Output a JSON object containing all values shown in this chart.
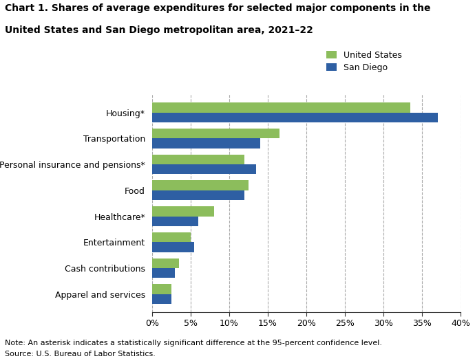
{
  "title_line1": "Chart 1. Shares of average expenditures for selected major components in the",
  "title_line2": "United States and San Diego metropolitan area, 2021–22",
  "categories": [
    "Apparel and services",
    "Cash contributions",
    "Entertainment",
    "Healthcare*",
    "Food",
    "Personal insurance and pensions*",
    "Transportation",
    "Housing*"
  ],
  "us_values": [
    2.5,
    3.5,
    5.0,
    8.0,
    12.5,
    12.0,
    16.5,
    33.5
  ],
  "sd_values": [
    2.5,
    3.0,
    5.5,
    6.0,
    12.0,
    13.5,
    14.0,
    37.0
  ],
  "us_color": "#8cbd5c",
  "sd_color": "#2e5fa3",
  "us_label": "United States",
  "sd_label": "San Diego",
  "xlim": [
    0,
    40
  ],
  "xtick_vals": [
    0,
    5,
    10,
    15,
    20,
    25,
    30,
    35,
    40
  ],
  "note": "Note: An asterisk indicates a statistically significant difference at the 95-percent confidence level.",
  "source": "Source: U.S. Bureau of Labor Statistics.",
  "bar_height": 0.38,
  "background_color": "#ffffff",
  "grid_color": "#aaaaaa"
}
